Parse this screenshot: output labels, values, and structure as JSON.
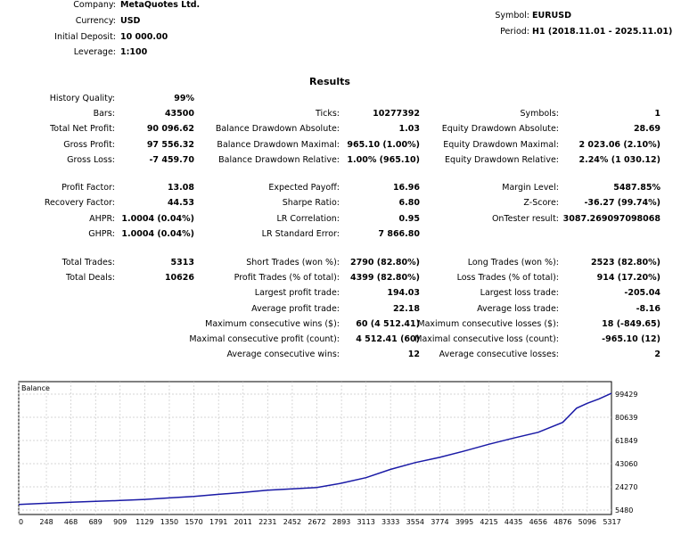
{
  "header": {
    "company": {
      "label": "Company:",
      "value": "MetaQuotes Ltd."
    },
    "currency": {
      "label": "Currency:",
      "value": "USD"
    },
    "initial_deposit": {
      "label": "Initial Deposit:",
      "value": "10 000.00"
    },
    "leverage": {
      "label": "Leverage:",
      "value": "1:100"
    },
    "symbol": {
      "label": "Symbol:",
      "value": "EURUSD"
    },
    "period": {
      "label": "Period:",
      "value": "H1 (2018.11.01 - 2025.11.01)"
    }
  },
  "results": {
    "heading": "Results",
    "col1": [
      {
        "label": "History Quality:",
        "value": "99%"
      },
      {
        "label": "Bars:",
        "value": "43500"
      },
      {
        "label": "Total Net Profit:",
        "value": "90 096.62"
      },
      {
        "label": "Gross Profit:",
        "value": "97 556.32"
      },
      {
        "label": "Gross Loss:",
        "value": "-7 459.70"
      },
      {
        "label": "Profit Factor:",
        "value": "13.08"
      },
      {
        "label": "Recovery Factor:",
        "value": "44.53"
      },
      {
        "label": "AHPR:",
        "value": "1.0004 (0.04%)"
      },
      {
        "label": "GHPR:",
        "value": "1.0004 (0.04%)"
      },
      {
        "label": "Total Trades:",
        "value": "5313"
      },
      {
        "label": "Total Deals:",
        "value": "10626"
      }
    ],
    "col2": [
      {
        "label": "Ticks:",
        "value": "10277392"
      },
      {
        "label": "Balance Drawdown Absolute:",
        "value": "1.03"
      },
      {
        "label": "Balance Drawdown Maximal:",
        "value": "965.10 (1.00%)"
      },
      {
        "label": "Balance Drawdown Relative:",
        "value": "1.00% (965.10)"
      },
      {
        "label": "Expected Payoff:",
        "value": "16.96"
      },
      {
        "label": "Sharpe Ratio:",
        "value": "6.80"
      },
      {
        "label": "LR Correlation:",
        "value": "0.95"
      },
      {
        "label": "LR Standard Error:",
        "value": "7 866.80"
      },
      {
        "label": "Short Trades (won %):",
        "value": "2790 (82.80%)"
      },
      {
        "label": "Profit Trades (% of total):",
        "value": "4399 (82.80%)"
      },
      {
        "label": "Largest profit trade:",
        "value": "194.03"
      },
      {
        "label": "Average profit trade:",
        "value": "22.18"
      },
      {
        "label": "Maximum consecutive wins ($):",
        "value": "60 (4 512.41)"
      },
      {
        "label": "Maximal consecutive profit (count):",
        "value": "4 512.41 (60)"
      },
      {
        "label": "Average consecutive wins:",
        "value": "12"
      }
    ],
    "col3": [
      {
        "label": "Symbols:",
        "value": "1"
      },
      {
        "label": "Equity Drawdown Absolute:",
        "value": "28.69"
      },
      {
        "label": "Equity Drawdown Maximal:",
        "value": "2 023.06 (2.10%)"
      },
      {
        "label": "Equity Drawdown Relative:",
        "value": "2.24% (1 030.12)"
      },
      {
        "label": "Margin Level:",
        "value": "5487.85%"
      },
      {
        "label": "Z-Score:",
        "value": "-36.27 (99.74%)"
      },
      {
        "label": "OnTester result:",
        "value": "3087.269097098068"
      },
      {
        "label": "Long Trades (won %):",
        "value": "2523 (82.80%)"
      },
      {
        "label": "Loss Trades (% of total):",
        "value": "914 (17.20%)"
      },
      {
        "label": "Largest loss trade:",
        "value": "-205.04"
      },
      {
        "label": "Average loss trade:",
        "value": "-8.16"
      },
      {
        "label": "Maximum consecutive losses ($):",
        "value": "18 (-849.65)"
      },
      {
        "label": "Maximal consecutive loss (count):",
        "value": "-965.10 (12)"
      },
      {
        "label": "Average consecutive losses:",
        "value": "2"
      }
    ]
  },
  "chart_data": {
    "type": "line",
    "title": "Balance",
    "xlabel": "",
    "ylabel": "",
    "x_ticks": [
      0,
      248,
      468,
      689,
      909,
      1129,
      1350,
      1570,
      1791,
      2011,
      2231,
      2452,
      2672,
      2893,
      3113,
      3333,
      3554,
      3774,
      3995,
      4215,
      4435,
      4656,
      4876,
      5096,
      5317
    ],
    "y_ticks": [
      5480,
      24270,
      43060,
      61849,
      80639,
      99429
    ],
    "xlim": [
      0,
      5313
    ],
    "ylim": [
      5480,
      99429
    ],
    "grid": true,
    "line_color": "#1a1aa6",
    "series": [
      {
        "name": "Balance",
        "x": [
          0,
          248,
          468,
          689,
          909,
          1129,
          1350,
          1570,
          1791,
          2011,
          2231,
          2452,
          2672,
          2893,
          3113,
          3333,
          3554,
          3774,
          3995,
          4215,
          4435,
          4656,
          4876,
          5000,
          5096,
          5200,
          5313
        ],
        "y": [
          10000,
          11000,
          11800,
          12500,
          13200,
          14100,
          15300,
          16500,
          18200,
          19800,
          21500,
          22700,
          23800,
          27200,
          31700,
          38400,
          43900,
          48200,
          53300,
          58800,
          63800,
          68500,
          76500,
          88000,
          92000,
          95500,
          100100
        ]
      }
    ]
  }
}
